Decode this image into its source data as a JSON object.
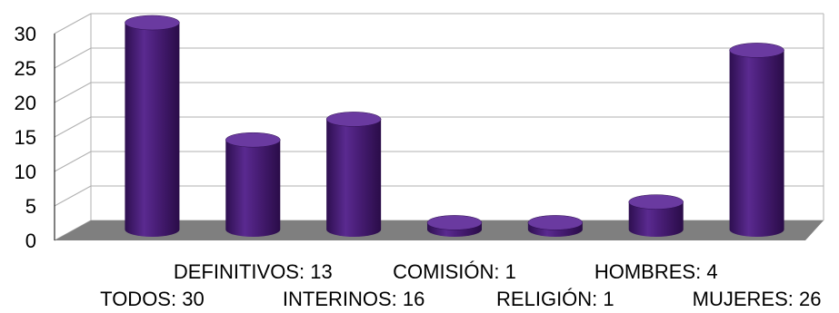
{
  "chart_data": {
    "type": "bar",
    "style": "3d-cylinder",
    "title": "",
    "xlabel": "",
    "ylabel": "",
    "ylim": [
      0,
      30
    ],
    "yticks": [
      0,
      5,
      10,
      15,
      20,
      25,
      30
    ],
    "grid": true,
    "legend": "none",
    "categories": [
      "TODOS: 30",
      "DEFINITIVOS: 13",
      "INTERINOS: 16",
      "COMISIÓN: 1",
      "RELIGIÓN: 1",
      "HOMBRES: 4",
      "MUJERES: 26"
    ],
    "values": [
      30,
      13,
      16,
      1,
      1,
      4,
      26
    ],
    "colors": {
      "bar": "#4b1f7a",
      "bar_light": "#6a3aa0",
      "bar_dark": "#2e0f50",
      "floor": "#7f7f7f",
      "grid": "#b0b0b0",
      "text": "#000000"
    }
  }
}
